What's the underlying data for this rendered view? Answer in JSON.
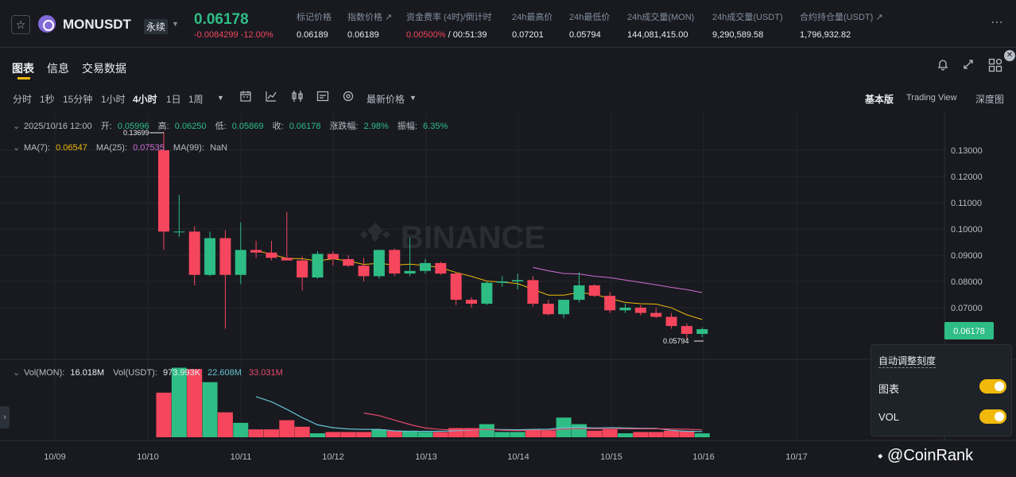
{
  "header": {
    "symbol": "MONUSDT",
    "contract_type": "永续",
    "last_price": "0.06178",
    "change": "-0.0084299 -12.00%",
    "stats": [
      {
        "label": "标记价格",
        "value": "0.06189"
      },
      {
        "label": "指数价格 ↗",
        "value": "0.06189"
      },
      {
        "label": "资金费率 (4时)/倒计时",
        "value_rate": "0.00500%",
        "value_countdown": " / 00:51:39"
      },
      {
        "label": "24h最高价",
        "value": "0.07201"
      },
      {
        "label": "24h最低价",
        "value": "0.05794"
      },
      {
        "label": "24h成交量(MON)",
        "value": "144,081,415.00"
      },
      {
        "label": "24h成交量(USDT)",
        "value": "9,290,589.58"
      },
      {
        "label": "合约持仓量(USDT) ↗",
        "value": "1,796,932.82"
      }
    ],
    "more_icon": "⋯"
  },
  "tabs": [
    {
      "label": "图表"
    },
    {
      "label": "信息"
    },
    {
      "label": "交易数据"
    }
  ],
  "toolbar": {
    "intervals": [
      "分时",
      "1秒",
      "15分钟",
      "1小时",
      "4小时",
      "1日",
      "1周"
    ],
    "active_interval": "4小时",
    "price_type": "最新价格",
    "views": [
      "基本版",
      "Trading View",
      "深度图"
    ],
    "active_view": "基本版"
  },
  "legend": {
    "date": "2025/10/16 12:00",
    "open_label": "开:",
    "open": "0.05996",
    "high_label": "高:",
    "high": "0.06250",
    "low_label": "低:",
    "low": "0.05869",
    "close_label": "收:",
    "close": "0.06178",
    "change_label": "涨跌幅:",
    "change": "2.98%",
    "amp_label": "振幅:",
    "amp": "6.35%",
    "ma7_label": "MA(7):",
    "ma7": "0.06547",
    "ma25_label": "MA(25):",
    "ma25": "0.07535",
    "ma99_label": "MA(99):",
    "ma99": "NaN",
    "vol_label": "Vol(MON):",
    "vol": "16.018M",
    "volusdt_label": "Vol(USDT):",
    "volusdt": "973.993K",
    "volma1": "22.608M",
    "volma2": "33.031M"
  },
  "watermark_text": "BINANCE",
  "settings_panel": {
    "title": "自动调整刻度",
    "items": [
      {
        "label": "图表",
        "on": true
      },
      {
        "label": "VOL",
        "on": true
      }
    ]
  },
  "brand_watermark": "@CoinRank",
  "colors": {
    "up": "#2ebd85",
    "down": "#f6465d",
    "ma7": "#f0b90b",
    "ma25": "#d26dd5",
    "vol_ma1": "#66c3d1",
    "vol_ma2": "#e84a6b",
    "accent": "#f0b90b",
    "bg": "#181a20"
  },
  "chart_data": {
    "type": "candlestick",
    "interval": "4小时",
    "y_ticks": [
      "0.13000",
      "0.12000",
      "0.11000",
      "0.10000",
      "0.09000",
      "0.08000",
      "0.07000"
    ],
    "x_ticks": [
      "10/09",
      "10/10",
      "10/11",
      "10/12",
      "10/13",
      "10/14",
      "10/15",
      "10/16",
      "10/17"
    ],
    "price_range": [
      0.058,
      0.1345
    ],
    "last_price_label": "0.06178",
    "high_marker": "0.13699",
    "low_marker": "0.05794",
    "candles": [
      {
        "o": 0.13,
        "h": 0.137,
        "l": 0.092,
        "c": 0.099,
        "v": 17.0
      },
      {
        "o": 0.099,
        "h": 0.113,
        "l": 0.097,
        "c": 0.099,
        "v": 26.5
      },
      {
        "o": 0.099,
        "h": 0.101,
        "l": 0.0785,
        "c": 0.0825,
        "v": 26.0
      },
      {
        "o": 0.0825,
        "h": 0.099,
        "l": 0.082,
        "c": 0.0965,
        "v": 21.0
      },
      {
        "o": 0.0965,
        "h": 0.0995,
        "l": 0.062,
        "c": 0.0825,
        "v": 9.5
      },
      {
        "o": 0.0825,
        "h": 0.1025,
        "l": 0.079,
        "c": 0.092,
        "v": 5.5
      },
      {
        "o": 0.092,
        "h": 0.0955,
        "l": 0.089,
        "c": 0.091,
        "v": 3.0
      },
      {
        "o": 0.091,
        "h": 0.0955,
        "l": 0.088,
        "c": 0.089,
        "v": 3.0
      },
      {
        "o": 0.089,
        "h": 0.1065,
        "l": 0.088,
        "c": 0.088,
        "v": 6.5
      },
      {
        "o": 0.088,
        "h": 0.0895,
        "l": 0.0765,
        "c": 0.0815,
        "v": 4.0
      },
      {
        "o": 0.0815,
        "h": 0.0915,
        "l": 0.081,
        "c": 0.0905,
        "v": 1.5
      },
      {
        "o": 0.0905,
        "h": 0.0915,
        "l": 0.086,
        "c": 0.0885,
        "v": 2.0
      },
      {
        "o": 0.0885,
        "h": 0.09,
        "l": 0.0855,
        "c": 0.086,
        "v": 2.0
      },
      {
        "o": 0.086,
        "h": 0.089,
        "l": 0.08,
        "c": 0.082,
        "v": 2.0
      },
      {
        "o": 0.082,
        "h": 0.092,
        "l": 0.081,
        "c": 0.092,
        "v": 3.0
      },
      {
        "o": 0.092,
        "h": 0.0925,
        "l": 0.082,
        "c": 0.083,
        "v": 2.5
      },
      {
        "o": 0.083,
        "h": 0.0965,
        "l": 0.082,
        "c": 0.084,
        "v": 2.5
      },
      {
        "o": 0.084,
        "h": 0.0885,
        "l": 0.083,
        "c": 0.087,
        "v": 2.0
      },
      {
        "o": 0.087,
        "h": 0.0875,
        "l": 0.0825,
        "c": 0.083,
        "v": 2.0
      },
      {
        "o": 0.083,
        "h": 0.0835,
        "l": 0.071,
        "c": 0.073,
        "v": 3.5
      },
      {
        "o": 0.073,
        "h": 0.074,
        "l": 0.07,
        "c": 0.0715,
        "v": 3.5
      },
      {
        "o": 0.0715,
        "h": 0.08,
        "l": 0.071,
        "c": 0.0795,
        "v": 5.0
      },
      {
        "o": 0.0795,
        "h": 0.082,
        "l": 0.078,
        "c": 0.08,
        "v": 2.0
      },
      {
        "o": 0.08,
        "h": 0.083,
        "l": 0.077,
        "c": 0.0805,
        "v": 2.0
      },
      {
        "o": 0.0805,
        "h": 0.082,
        "l": 0.0705,
        "c": 0.0715,
        "v": 3.0
      },
      {
        "o": 0.0715,
        "h": 0.073,
        "l": 0.067,
        "c": 0.0675,
        "v": 2.5
      },
      {
        "o": 0.0675,
        "h": 0.073,
        "l": 0.066,
        "c": 0.073,
        "v": 7.5
      },
      {
        "o": 0.073,
        "h": 0.0835,
        "l": 0.072,
        "c": 0.0785,
        "v": 5.0
      },
      {
        "o": 0.0785,
        "h": 0.079,
        "l": 0.074,
        "c": 0.0745,
        "v": 2.5
      },
      {
        "o": 0.0745,
        "h": 0.076,
        "l": 0.068,
        "c": 0.069,
        "v": 3.0
      },
      {
        "o": 0.069,
        "h": 0.0715,
        "l": 0.068,
        "c": 0.07,
        "v": 1.5
      },
      {
        "o": 0.07,
        "h": 0.071,
        "l": 0.067,
        "c": 0.068,
        "v": 2.0
      },
      {
        "o": 0.068,
        "h": 0.07,
        "l": 0.066,
        "c": 0.0665,
        "v": 2.0
      },
      {
        "o": 0.0665,
        "h": 0.068,
        "l": 0.062,
        "c": 0.063,
        "v": 2.5
      },
      {
        "o": 0.063,
        "h": 0.064,
        "l": 0.0579,
        "c": 0.06,
        "v": 2.5
      },
      {
        "o": 0.06,
        "h": 0.0625,
        "l": 0.0587,
        "c": 0.0618,
        "v": 1.5
      }
    ]
  }
}
